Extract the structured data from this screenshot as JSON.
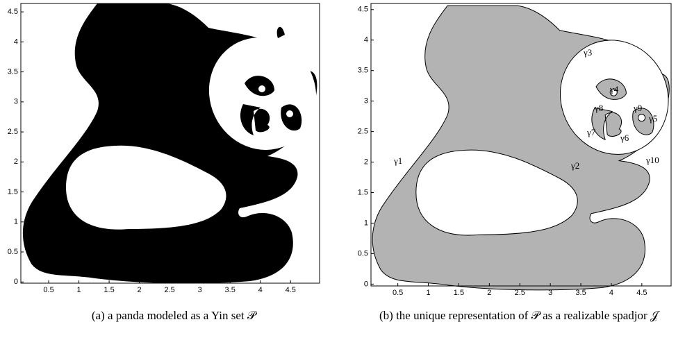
{
  "panels": [
    {
      "xlim": [
        0.04,
        4.98
      ],
      "ylim": [
        -0.02,
        4.64
      ],
      "xticks": [
        0.5,
        1,
        1.5,
        2,
        2.5,
        3,
        3.5,
        4,
        4.5
      ],
      "yticks": [
        0,
        0.5,
        1,
        1.5,
        2,
        2.5,
        3,
        3.5,
        4,
        4.5
      ],
      "caption": "(a) a panda modeled as a Yin set 𝒫",
      "labels": []
    },
    {
      "xlim": [
        0.06,
        4.98
      ],
      "ylim": [
        -0.03,
        4.6
      ],
      "xticks": [
        0.5,
        1,
        1.5,
        2,
        2.5,
        3,
        3.5,
        4,
        4.5
      ],
      "yticks": [
        0,
        0.5,
        1,
        1.5,
        2,
        2.5,
        3,
        3.5,
        4,
        4.5
      ],
      "caption": "(b) the unique representation of 𝒫 as a realizable spadjor 𝒥",
      "labels": [
        "γ1",
        "γ2",
        "γ3",
        "γ4",
        "γ5",
        "γ6",
        "γ7",
        "γ8",
        "γ9",
        "γ10"
      ]
    }
  ]
}
